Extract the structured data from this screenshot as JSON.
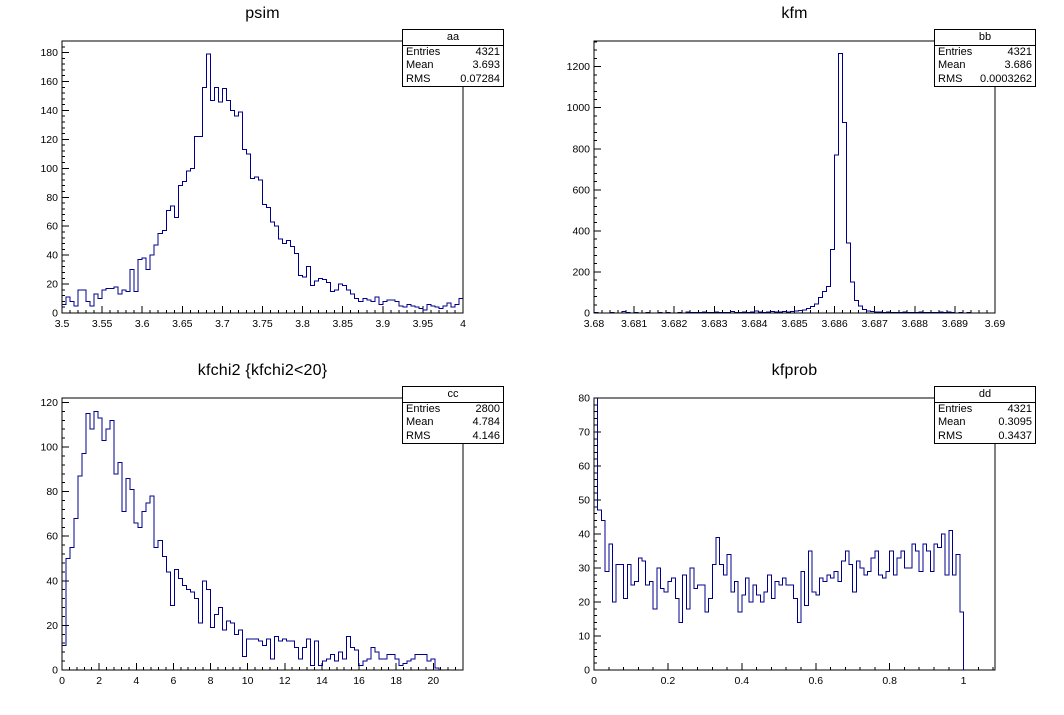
{
  "colors": {
    "hist_line": "#00008c",
    "frame": "#000000",
    "background": "#ffffff"
  },
  "chart_data": [
    {
      "type": "bar",
      "style": "histogram-step-line",
      "title": "psim",
      "stats": {
        "name": "aa",
        "rows": [
          [
            "Entries",
            "4321"
          ],
          [
            "Mean",
            "3.693"
          ],
          [
            "RMS",
            "0.07284"
          ]
        ]
      },
      "x_start": 3.5,
      "bin_width": 0.005,
      "axis": {
        "x_min": 3.5,
        "x_max": 4.0,
        "x_minor": 0.01,
        "y_max": 188,
        "y_minor": 4,
        "x_tick_vals": [
          3.5,
          3.55,
          3.6,
          3.65,
          3.7,
          3.75,
          3.8,
          3.85,
          3.9,
          3.95,
          4
        ],
        "x_tick_labels": [
          "3.5",
          "3.55",
          "3.6",
          "3.65",
          "3.7",
          "3.75",
          "3.8",
          "3.85",
          "3.9",
          "3.95",
          "4"
        ],
        "y_tick_vals": [
          0,
          20,
          40,
          60,
          80,
          100,
          120,
          140,
          160,
          180
        ],
        "y_tick_labels": [
          "0",
          "20",
          "40",
          "60",
          "80",
          "100",
          "120",
          "140",
          "160",
          "180"
        ],
        "grid": false
      },
      "values": [
        6,
        11,
        8,
        5,
        16,
        16,
        8,
        5,
        13,
        10,
        16,
        17,
        17,
        18,
        13,
        16,
        15,
        30,
        15,
        37,
        38,
        30,
        40,
        47,
        55,
        57,
        71,
        74,
        66,
        88,
        91,
        98,
        100,
        122,
        122,
        156,
        179,
        147,
        156,
        146,
        155,
        147,
        140,
        136,
        139,
        113,
        110,
        93,
        94,
        92,
        75,
        73,
        63,
        60,
        51,
        48,
        50,
        46,
        41,
        26,
        25,
        32,
        19,
        22,
        24,
        23,
        21,
        15,
        16,
        20,
        19,
        16,
        13,
        10,
        8,
        10,
        9,
        8,
        11,
        6,
        8,
        9,
        9,
        8,
        5,
        4,
        6,
        5,
        4,
        3,
        2,
        6,
        5,
        4,
        3,
        5,
        7,
        4,
        6,
        10
      ]
    },
    {
      "type": "bar",
      "style": "histogram-step-line",
      "title": "kfm",
      "stats": {
        "name": "bb",
        "rows": [
          [
            "Entries",
            "4321"
          ],
          [
            "Mean",
            "3.686"
          ],
          [
            "RMS",
            "0.0003262"
          ]
        ]
      },
      "x_start": 3.68,
      "bin_width": 0.0001,
      "axis": {
        "x_min": 3.68,
        "x_max": 3.69,
        "x_minor": 0.0002,
        "y_max": 1325,
        "y_minor": 40,
        "x_tick_vals": [
          3.68,
          3.681,
          3.682,
          3.683,
          3.684,
          3.685,
          3.686,
          3.687,
          3.688,
          3.689,
          3.69
        ],
        "x_tick_labels": [
          "3.68",
          "3.681",
          "3.682",
          "3.683",
          "3.684",
          "3.685",
          "3.686",
          "3.687",
          "3.688",
          "3.689",
          "3.69"
        ],
        "y_tick_vals": [
          0,
          200,
          400,
          600,
          800,
          1000,
          1200
        ],
        "y_tick_labels": [
          "0",
          "200",
          "400",
          "600",
          "800",
          "1000",
          "1200"
        ],
        "grid": false
      },
      "values": [
        2,
        0,
        1,
        0,
        2,
        1,
        0,
        8,
        3,
        1,
        2,
        0,
        1,
        2,
        1,
        0,
        2,
        1,
        2,
        1,
        0,
        2,
        1,
        6,
        2,
        3,
        2,
        5,
        2,
        3,
        6,
        2,
        3,
        2,
        8,
        3,
        2,
        4,
        3,
        5,
        10,
        4,
        3,
        5,
        8,
        4,
        6,
        8,
        5,
        7,
        10,
        12,
        15,
        22,
        32,
        45,
        75,
        105,
        130,
        310,
        770,
        1263,
        929,
        340,
        150,
        60,
        35,
        18,
        10,
        8,
        5,
        4,
        3,
        5,
        2,
        3,
        2,
        4,
        2,
        3,
        2,
        5,
        3,
        2,
        3,
        2,
        4,
        3,
        5,
        2,
        1,
        2,
        1,
        2,
        1,
        0,
        1,
        0,
        1,
        0
      ]
    },
    {
      "type": "bar",
      "style": "histogram-step-line",
      "title": "kfchi2 {kfchi2<20}",
      "stats": {
        "name": "cc",
        "rows": [
          [
            "Entries",
            "2800"
          ],
          [
            "Mean",
            "4.784"
          ],
          [
            "RMS",
            "4.146"
          ]
        ]
      },
      "x_start": 0,
      "bin_width": 0.216,
      "axis": {
        "x_min": 0,
        "x_max": 21.6,
        "x_minor": 0.4,
        "y_max": 122,
        "y_minor": 4,
        "x_tick_vals": [
          0,
          2,
          4,
          6,
          8,
          10,
          12,
          14,
          16,
          18,
          20
        ],
        "x_tick_labels": [
          "0",
          "2",
          "4",
          "6",
          "8",
          "10",
          "12",
          "14",
          "16",
          "18",
          "20"
        ],
        "y_tick_vals": [
          0,
          20,
          40,
          60,
          80,
          100,
          120
        ],
        "y_tick_labels": [
          "0",
          "20",
          "40",
          "60",
          "80",
          "100",
          "120"
        ],
        "grid": false
      },
      "values": [
        11,
        50,
        55,
        68,
        87,
        97,
        115,
        108,
        116,
        113,
        103,
        108,
        112,
        88,
        93,
        71,
        86,
        81,
        66,
        64,
        71,
        75,
        78,
        55,
        58,
        51,
        44,
        29,
        45,
        41,
        38,
        36,
        35,
        32,
        21,
        40,
        36,
        19,
        25,
        28,
        18,
        22,
        21,
        16,
        18,
        6,
        14,
        14,
        14,
        13,
        11,
        14,
        5,
        15,
        13,
        14,
        13,
        13,
        10,
        5,
        10,
        14,
        2,
        13,
        2,
        4,
        5,
        7,
        4,
        8,
        5,
        15,
        10,
        9,
        2,
        4,
        5,
        10,
        8,
        5,
        5,
        7,
        7,
        5,
        2,
        3,
        4,
        5,
        7,
        7,
        7,
        4,
        5,
        1,
        0,
        0,
        0,
        0,
        0,
        0
      ]
    },
    {
      "type": "bar",
      "style": "histogram-step-line",
      "title": "kfprob",
      "stats": {
        "name": "dd",
        "rows": [
          [
            "Entries",
            "4321"
          ],
          [
            "Mean",
            "0.3095"
          ],
          [
            "RMS",
            "0.3437"
          ]
        ]
      },
      "x_start": 0,
      "bin_width": 0.01,
      "axis": {
        "x_min": 0,
        "x_max": 1.085,
        "x_minor": 0.04,
        "y_max": 80,
        "y_minor": 2,
        "x_tick_vals": [
          0,
          0.2,
          0.4,
          0.6,
          0.8,
          1
        ],
        "x_tick_labels": [
          "0",
          "0.2",
          "0.4",
          "0.6",
          "0.8",
          "1"
        ],
        "y_tick_vals": [
          0,
          10,
          20,
          30,
          40,
          50,
          60,
          70,
          80
        ],
        "y_tick_labels": [
          "0",
          "10",
          "20",
          "30",
          "40",
          "50",
          "60",
          "70",
          "80"
        ],
        "grid": false
      },
      "values": [
        80,
        47,
        44,
        29,
        37,
        20,
        31,
        31,
        21,
        31,
        25,
        26,
        33,
        32,
        25,
        26,
        18,
        30,
        24,
        23,
        26,
        27,
        21,
        14,
        28,
        18,
        30,
        24,
        25,
        25,
        17,
        21,
        31,
        39,
        31,
        28,
        34,
        23,
        26,
        17,
        22,
        27,
        20,
        25,
        22,
        20,
        23,
        28,
        21,
        26,
        25,
        27,
        25,
        25,
        21,
        14,
        29,
        19,
        35,
        23,
        22,
        27,
        26,
        28,
        27,
        29,
        26,
        32,
        35,
        31,
        23,
        32,
        30,
        28,
        29,
        33,
        35,
        28,
        27,
        29,
        35,
        28,
        33,
        35,
        30,
        30,
        37,
        35,
        29,
        37,
        35,
        29,
        37,
        36,
        40,
        28,
        41,
        28,
        34,
        17
      ]
    }
  ]
}
